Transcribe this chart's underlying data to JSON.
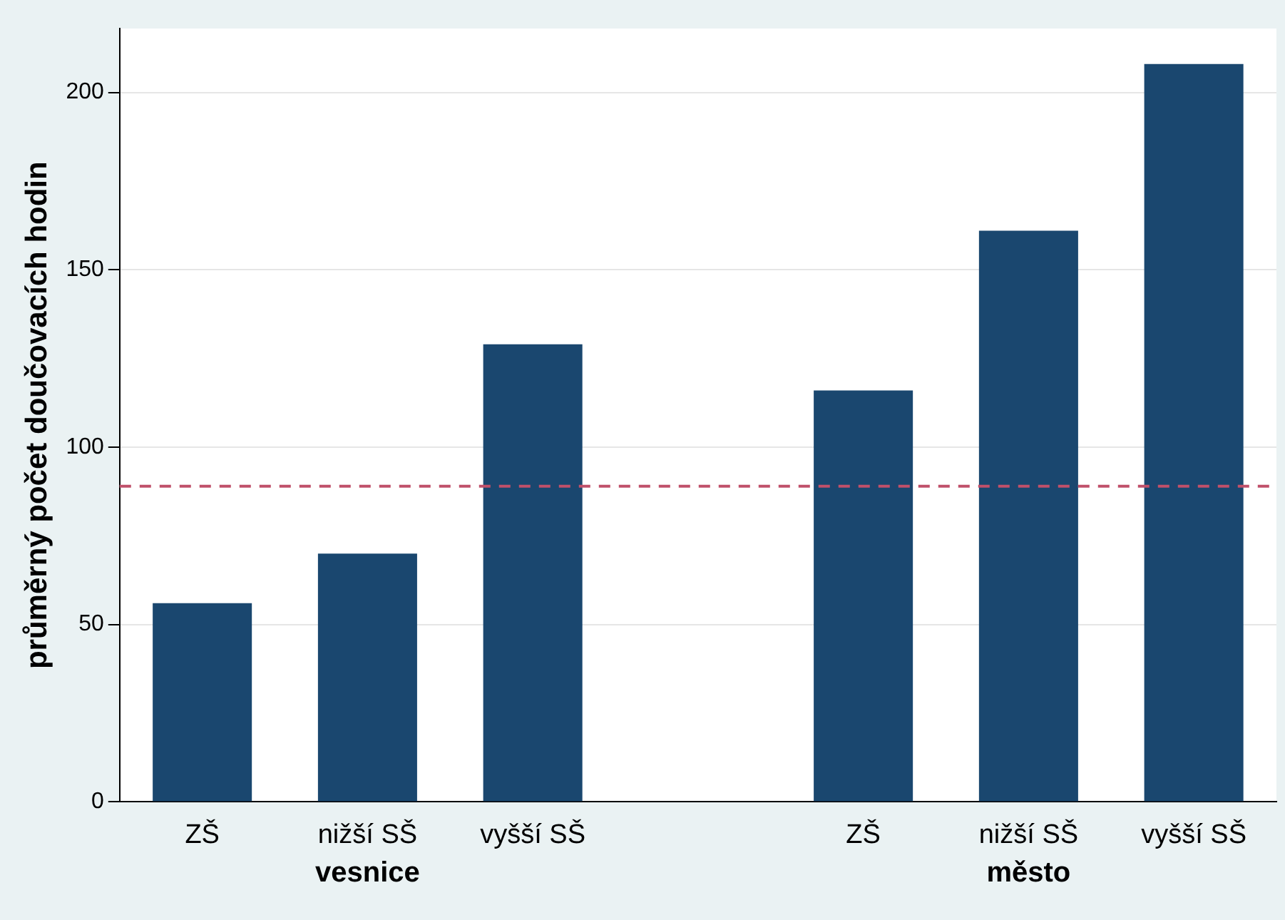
{
  "chart_data": {
    "type": "bar",
    "ylabel": "průměrný počet doučovacích hodin",
    "categories": [
      "ZŠ",
      "nižší SŠ",
      "vyšší SŠ",
      null,
      "ZŠ",
      "nižší SŠ",
      "vyšší SŠ"
    ],
    "values": [
      56,
      70,
      129,
      null,
      116,
      161,
      208
    ],
    "color": "#1a476f",
    "ylim": [
      0,
      218
    ],
    "yticks": [
      0,
      50,
      100,
      150,
      200
    ],
    "grid": "y",
    "legend": false,
    "ref_lines": [
      {
        "axis": "y",
        "value": 89,
        "color": "#c0506a",
        "line_style": "dashed"
      }
    ],
    "annotations": [
      "vesnice",
      "město"
    ]
  }
}
